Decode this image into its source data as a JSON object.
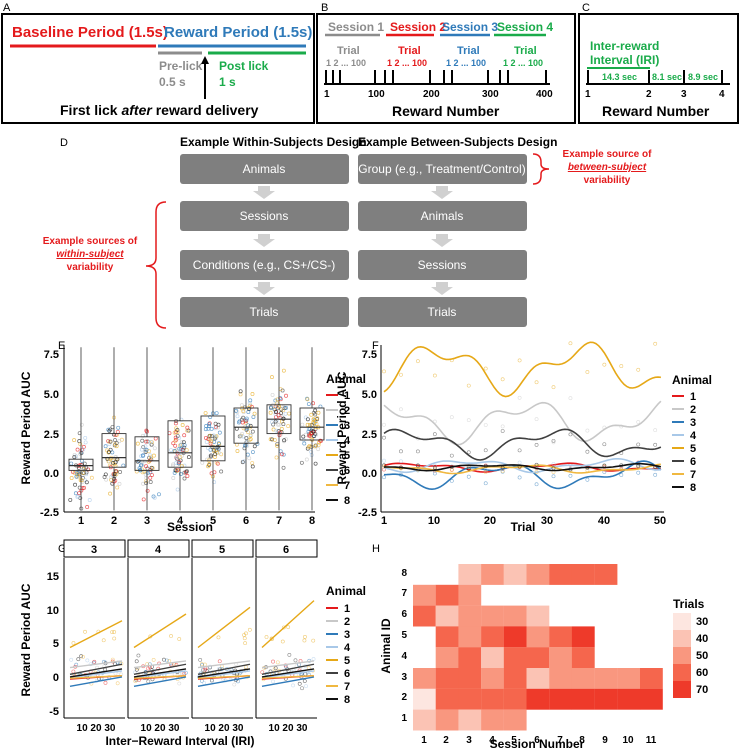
{
  "panels": {
    "a": "A",
    "b": "B",
    "c": "C",
    "d": "D",
    "e": "E",
    "f": "F",
    "g": "G",
    "h": "H"
  },
  "colors": {
    "red": "#e41a1c",
    "blue": "#2f7ab9",
    "green": "#1aab4a",
    "gray": "#8c8c8c",
    "box": "#808080",
    "orange": "#e6a817"
  },
  "panel_a": {
    "baseline": "Baseline Period (1.5s)",
    "reward": "Reward Period (1.5s)",
    "prelick": "Pre-lick",
    "prelick_dur": "0.5 s",
    "postlick": "Post lick",
    "postlick_dur": "1 s",
    "caption_pre": "First lick ",
    "caption_em": "after",
    "caption_post": " reward delivery"
  },
  "panel_b": {
    "sessions": [
      "Session 1",
      "Session 2",
      "Session 3",
      "Session 4"
    ],
    "trial": "Trial",
    "seq": "1 2 ... 100",
    "ticks": [
      "1",
      "100",
      "200",
      "300",
      "400"
    ],
    "xlabel": "Reward Number"
  },
  "panel_c": {
    "title1": "Inter-reward",
    "title2": "Interval (IRI)",
    "intervals": [
      "14.3 sec",
      "8.1 sec",
      "8.9 sec"
    ],
    "ticks": [
      "1",
      "2",
      "3",
      "4"
    ],
    "xlabel": "Reward Number"
  },
  "panel_d": {
    "within_title": "Example Within-Subjects Design",
    "between_title": "Example Between-Subjects Design",
    "within_boxes": [
      "Animals",
      "Sessions",
      "Conditions (e.g., CS+/CS-)",
      "Trials"
    ],
    "between_boxes": [
      "Group (e.g., Treatment/Control)",
      "Animals",
      "Sessions",
      "Trials"
    ],
    "within_note": [
      "Example sources of",
      "within-subject",
      "variability"
    ],
    "between_note": [
      "Example source of",
      "between-subject",
      "variability"
    ]
  },
  "legend_title": "Animal",
  "animals": [
    "1",
    "2",
    "3",
    "4",
    "5",
    "6",
    "7",
    "8"
  ],
  "animal_colors": [
    "#e41a1c",
    "#c8c8c8",
    "#2f7ab9",
    "#a8c8e8",
    "#e6a817",
    "#404040",
    "#f0b840",
    "#111111"
  ],
  "panel_e": {
    "ylabel": "Reward Period AUC",
    "xlabel": "Session",
    "yticks": [
      "7.5",
      "5.0",
      "2.5",
      "0.0",
      "-2.5"
    ],
    "xticks": [
      "1",
      "2",
      "3",
      "4",
      "5",
      "6",
      "7",
      "8"
    ]
  },
  "panel_f": {
    "ylabel": "Reward Period AUC",
    "xlabel": "Trial",
    "yticks": [
      "7.5",
      "5.0",
      "2.5",
      "0.0",
      "-2.5"
    ],
    "xticks": [
      "1",
      "10",
      "20",
      "30",
      "40",
      "50"
    ]
  },
  "panel_g": {
    "ylabel": "Reward Period AUC",
    "xlabel": "Inter−Reward Interval (IRI)",
    "facets": [
      "3",
      "4",
      "5",
      "6"
    ],
    "yticks": [
      "15",
      "10",
      "5",
      "0",
      "-5"
    ],
    "xticks": "10 20 30"
  },
  "panel_h": {
    "ylabel": "Animal ID",
    "xlabel": "Session Number",
    "legend_title": "Trials",
    "legend": [
      "30",
      "40",
      "50",
      "60",
      "70"
    ],
    "yticks": [
      "8",
      "7",
      "6",
      "5",
      "4",
      "3",
      "2",
      "1"
    ],
    "xticks": [
      "1",
      "2",
      "3",
      "4",
      "5",
      "6",
      "7",
      "8",
      "9",
      "10",
      "11"
    ]
  }
}
